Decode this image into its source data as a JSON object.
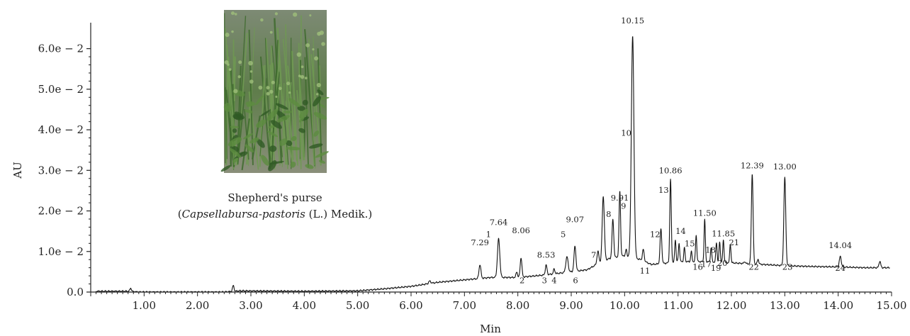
{
  "chart_data": {
    "type": "line",
    "xlabel": "Min",
    "ylabel": "AU",
    "xlim": [
      0,
      15.0
    ],
    "ylim": [
      0,
      0.065
    ],
    "x_ticks": [
      "1.00",
      "2.00",
      "3.00",
      "4.00",
      "5.00",
      "6.00",
      "7.00",
      "8.00",
      "9.00",
      "10.00",
      "11.00",
      "12.00",
      "13.00",
      "14.00",
      "15.00"
    ],
    "x_tick_values": [
      1,
      2,
      3,
      4,
      5,
      6,
      7,
      8,
      9,
      10,
      11,
      12,
      13,
      14,
      15
    ],
    "y_ticks": [
      "0.0",
      "1.0e − 2",
      "2.0e − 2",
      "3.0e − 2",
      "4.0e − 2",
      "5.0e − 2",
      "6.0e − 2"
    ],
    "y_tick_values": [
      0,
      0.01,
      0.02,
      0.03,
      0.04,
      0.05,
      0.06
    ],
    "baseline": [
      [
        0,
        0.0002
      ],
      [
        0.7,
        0.0002
      ],
      [
        0.9,
        0.0
      ],
      [
        2.5,
        0.0
      ],
      [
        2.8,
        0.0003
      ],
      [
        4.0,
        0.0002
      ],
      [
        5.0,
        0.0003
      ],
      [
        5.5,
        0.0008
      ],
      [
        6.0,
        0.0014
      ],
      [
        6.5,
        0.0024
      ],
      [
        7.0,
        0.003
      ],
      [
        7.5,
        0.0036
      ],
      [
        8.0,
        0.0036
      ],
      [
        8.5,
        0.0042
      ],
      [
        9.0,
        0.005
      ],
      [
        9.3,
        0.0055
      ],
      [
        9.5,
        0.007
      ],
      [
        9.7,
        0.0082
      ],
      [
        10.0,
        0.009
      ],
      [
        10.3,
        0.008
      ],
      [
        10.5,
        0.0068
      ],
      [
        10.7,
        0.007
      ],
      [
        11.0,
        0.0075
      ],
      [
        11.5,
        0.0075
      ],
      [
        12.0,
        0.0072
      ],
      [
        12.3,
        0.007
      ],
      [
        12.6,
        0.0068
      ],
      [
        13.0,
        0.0065
      ],
      [
        13.5,
        0.0063
      ],
      [
        14.0,
        0.0062
      ],
      [
        14.5,
        0.006
      ],
      [
        15.0,
        0.006
      ]
    ],
    "peaks": [
      {
        "rt": 0.75,
        "h": 0.0008,
        "w": 0.015
      },
      {
        "rt": 2.67,
        "h": 0.0014,
        "w": 0.015
      },
      {
        "rt": 6.35,
        "h": 0.0006,
        "w": 0.02
      },
      {
        "rt": 7.29,
        "h": 0.0034,
        "w": 0.018
      },
      {
        "rt": 7.64,
        "h": 0.0095,
        "w": 0.022
      },
      {
        "rt": 7.98,
        "h": 0.0014,
        "w": 0.014
      },
      {
        "rt": 8.06,
        "h": 0.0048,
        "w": 0.016
      },
      {
        "rt": 8.53,
        "h": 0.0024,
        "w": 0.016
      },
      {
        "rt": 8.68,
        "h": 0.0012,
        "w": 0.014
      },
      {
        "rt": 8.92,
        "h": 0.0038,
        "w": 0.022
      },
      {
        "rt": 9.07,
        "h": 0.0062,
        "w": 0.018
      },
      {
        "rt": 9.5,
        "h": 0.003,
        "w": 0.018
      },
      {
        "rt": 9.6,
        "h": 0.016,
        "w": 0.02
      },
      {
        "rt": 9.78,
        "h": 0.0095,
        "w": 0.016
      },
      {
        "rt": 9.91,
        "h": 0.0162,
        "w": 0.014
      },
      {
        "rt": 10.03,
        "h": 0.0016,
        "w": 0.012
      },
      {
        "rt": 10.15,
        "h": 0.0545,
        "w": 0.024
      },
      {
        "rt": 10.35,
        "h": 0.0028,
        "w": 0.016
      },
      {
        "rt": 10.68,
        "h": 0.0086,
        "w": 0.016
      },
      {
        "rt": 10.86,
        "h": 0.0205,
        "w": 0.014
      },
      {
        "rt": 10.95,
        "h": 0.0055,
        "w": 0.012
      },
      {
        "rt": 11.02,
        "h": 0.0045,
        "w": 0.012
      },
      {
        "rt": 11.12,
        "h": 0.0035,
        "w": 0.012
      },
      {
        "rt": 11.25,
        "h": 0.0025,
        "w": 0.012
      },
      {
        "rt": 11.34,
        "h": 0.0065,
        "w": 0.012
      },
      {
        "rt": 11.5,
        "h": 0.0104,
        "w": 0.012
      },
      {
        "rt": 11.62,
        "h": 0.0035,
        "w": 0.012
      },
      {
        "rt": 11.72,
        "h": 0.0048,
        "w": 0.012
      },
      {
        "rt": 11.78,
        "h": 0.005,
        "w": 0.012
      },
      {
        "rt": 11.85,
        "h": 0.0055,
        "w": 0.012
      },
      {
        "rt": 11.98,
        "h": 0.0045,
        "w": 0.012
      },
      {
        "rt": 12.25,
        "h": 0.0005,
        "w": 0.012
      },
      {
        "rt": 12.39,
        "h": 0.0222,
        "w": 0.016
      },
      {
        "rt": 12.5,
        "h": 0.0012,
        "w": 0.014
      },
      {
        "rt": 13.0,
        "h": 0.0217,
        "w": 0.018
      },
      {
        "rt": 14.04,
        "h": 0.0026,
        "w": 0.018
      },
      {
        "rt": 14.78,
        "h": 0.0016,
        "w": 0.016
      }
    ],
    "labels": [
      {
        "text": "7.29",
        "x": 7.29,
        "y": 0.0115
      },
      {
        "text": "7.64",
        "x": 7.64,
        "y": 0.0165
      },
      {
        "text": "1",
        "x": 7.45,
        "y": 0.0135
      },
      {
        "text": "8.06",
        "x": 8.06,
        "y": 0.0145
      },
      {
        "text": "2",
        "x": 8.08,
        "y": 0.0022
      },
      {
        "text": "8.53",
        "x": 8.53,
        "y": 0.0085
      },
      {
        "text": "3",
        "x": 8.5,
        "y": 0.0022
      },
      {
        "text": "4",
        "x": 8.68,
        "y": 0.0022
      },
      {
        "text": "5",
        "x": 8.85,
        "y": 0.0135
      },
      {
        "text": "9.07",
        "x": 9.07,
        "y": 0.0172
      },
      {
        "text": "6",
        "x": 9.08,
        "y": 0.0022
      },
      {
        "text": "7",
        "x": 9.42,
        "y": 0.0085
      },
      {
        "text": "8",
        "x": 9.7,
        "y": 0.0185
      },
      {
        "text": "9.91",
        "x": 9.91,
        "y": 0.0225
      },
      {
        "text": "9",
        "x": 9.98,
        "y": 0.0205
      },
      {
        "text": "10",
        "x": 10.03,
        "y": 0.0385
      },
      {
        "text": "10.15",
        "x": 10.15,
        "y": 0.0662
      },
      {
        "text": "11",
        "x": 10.38,
        "y": 0.0045
      },
      {
        "text": "12",
        "x": 10.57,
        "y": 0.0135
      },
      {
        "text": "10.86",
        "x": 10.86,
        "y": 0.0293
      },
      {
        "text": "13",
        "x": 10.73,
        "y": 0.0245
      },
      {
        "text": "14",
        "x": 11.05,
        "y": 0.0143
      },
      {
        "text": "15",
        "x": 11.22,
        "y": 0.0113
      },
      {
        "text": "16",
        "x": 11.37,
        "y": 0.0055
      },
      {
        "text": "11.50",
        "x": 11.5,
        "y": 0.0188
      },
      {
        "text": "17",
        "x": 11.53,
        "y": 0.0062
      },
      {
        "text": "18",
        "x": 11.61,
        "y": 0.0097
      },
      {
        "text": "19",
        "x": 11.71,
        "y": 0.0052
      },
      {
        "text": "11.85",
        "x": 11.85,
        "y": 0.0137
      },
      {
        "text": "20",
        "x": 11.83,
        "y": 0.0065
      },
      {
        "text": "21",
        "x": 12.05,
        "y": 0.0115
      },
      {
        "text": "22",
        "x": 12.42,
        "y": 0.0055
      },
      {
        "text": "12.39",
        "x": 12.39,
        "y": 0.0305
      },
      {
        "text": "13.00",
        "x": 13.0,
        "y": 0.0302
      },
      {
        "text": "23",
        "x": 13.05,
        "y": 0.0055
      },
      {
        "text": "14.04",
        "x": 14.04,
        "y": 0.0108
      },
      {
        "text": "24",
        "x": 14.04,
        "y": 0.0052
      }
    ]
  },
  "photo": {
    "caption_line1": "Shepherd's purse",
    "caption_line2_prefix": "(",
    "caption_line2_italic": "Capsellabursa-pastoris",
    "caption_line2_suffix": " (L.) Medik.)"
  },
  "colors": {
    "line": "#111111",
    "axis": "#222222",
    "photo_bg": "#8f9a86",
    "photo_plant": "#4f7a3a"
  }
}
